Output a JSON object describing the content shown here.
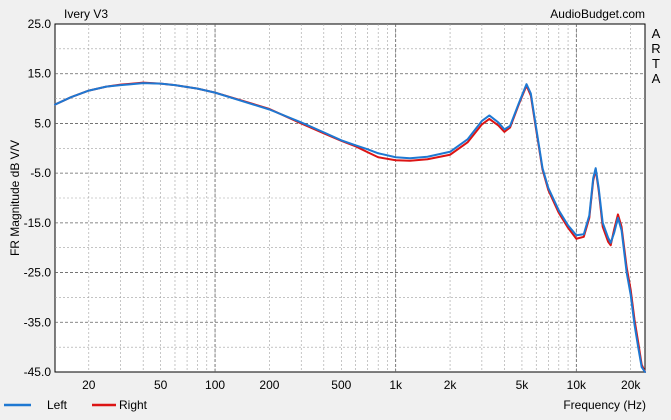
{
  "header": {
    "title": "Ivery V3",
    "site": "AudioBudget.com",
    "arta": [
      "A",
      "R",
      "T",
      "A"
    ]
  },
  "colors": {
    "background": "#f0f0f0",
    "plot_bg": "#ffffff",
    "grid": "#a0a0a0",
    "left": "#1e78d2",
    "right": "#dc1414"
  },
  "chart_data": {
    "type": "line",
    "title": "Ivery V3",
    "xlabel": "Frequency (Hz)",
    "ylabel": "FR Magnitude dB V/V",
    "xscale": "log",
    "xlim": [
      13,
      24000
    ],
    "ylim": [
      -45,
      25
    ],
    "grid": true,
    "legend_position": "bottom-left",
    "xticks": [
      {
        "v": 20,
        "label": "20"
      },
      {
        "v": 50,
        "label": "50"
      },
      {
        "v": 100,
        "label": "100"
      },
      {
        "v": 200,
        "label": "200"
      },
      {
        "v": 500,
        "label": "500"
      },
      {
        "v": 1000,
        "label": "1k"
      },
      {
        "v": 2000,
        "label": "2k"
      },
      {
        "v": 5000,
        "label": "5k"
      },
      {
        "v": 10000,
        "label": "10k"
      },
      {
        "v": 20000,
        "label": "20k"
      }
    ],
    "yticks": [
      {
        "v": 25,
        "label": "25.0"
      },
      {
        "v": 15,
        "label": "15.0"
      },
      {
        "v": 5,
        "label": "5.0"
      },
      {
        "v": -5,
        "label": "-5.0"
      },
      {
        "v": -15,
        "label": "-15.0"
      },
      {
        "v": -25,
        "label": "-25.0"
      },
      {
        "v": -35,
        "label": "-35.0"
      },
      {
        "v": -45,
        "label": "-45.0"
      }
    ],
    "series": [
      {
        "name": "Left",
        "color": "#1e78d2",
        "points": [
          [
            13,
            8.8
          ],
          [
            16,
            10.3
          ],
          [
            20,
            11.6
          ],
          [
            25,
            12.4
          ],
          [
            30,
            12.7
          ],
          [
            40,
            13.1
          ],
          [
            50,
            13.0
          ],
          [
            60,
            12.7
          ],
          [
            80,
            12.0
          ],
          [
            100,
            11.2
          ],
          [
            150,
            9.2
          ],
          [
            200,
            7.8
          ],
          [
            300,
            5.2
          ],
          [
            400,
            3.2
          ],
          [
            500,
            1.6
          ],
          [
            600,
            0.6
          ],
          [
            700,
            -0.2
          ],
          [
            800,
            -1.0
          ],
          [
            1000,
            -1.8
          ],
          [
            1200,
            -2.0
          ],
          [
            1500,
            -1.7
          ],
          [
            2000,
            -0.7
          ],
          [
            2500,
            1.8
          ],
          [
            3000,
            5.5
          ],
          [
            3300,
            6.6
          ],
          [
            3700,
            5.2
          ],
          [
            4000,
            3.8
          ],
          [
            4300,
            4.5
          ],
          [
            4800,
            9.0
          ],
          [
            5300,
            12.9
          ],
          [
            5600,
            11.0
          ],
          [
            6000,
            4.0
          ],
          [
            6500,
            -4.0
          ],
          [
            7000,
            -8.0
          ],
          [
            8000,
            -12.5
          ],
          [
            9000,
            -15.5
          ],
          [
            10000,
            -17.5
          ],
          [
            11000,
            -17.3
          ],
          [
            11800,
            -13.5
          ],
          [
            12400,
            -6.0
          ],
          [
            12800,
            -4.0
          ],
          [
            13300,
            -8.0
          ],
          [
            14000,
            -15.0
          ],
          [
            15000,
            -18.0
          ],
          [
            15500,
            -19.0
          ],
          [
            16200,
            -17.0
          ],
          [
            17000,
            -14.0
          ],
          [
            17800,
            -16.5
          ],
          [
            19000,
            -25.0
          ],
          [
            20000,
            -29.5
          ],
          [
            21000,
            -35.5
          ],
          [
            22000,
            -40.0
          ],
          [
            23000,
            -44.0
          ],
          [
            24000,
            -45.0
          ]
        ]
      },
      {
        "name": "Right",
        "color": "#dc1414",
        "points": [
          [
            13,
            8.8
          ],
          [
            16,
            10.3
          ],
          [
            20,
            11.6
          ],
          [
            25,
            12.4
          ],
          [
            30,
            12.8
          ],
          [
            40,
            13.2
          ],
          [
            50,
            13.0
          ],
          [
            60,
            12.7
          ],
          [
            80,
            12.0
          ],
          [
            100,
            11.2
          ],
          [
            150,
            9.3
          ],
          [
            200,
            7.9
          ],
          [
            300,
            5.0
          ],
          [
            400,
            3.0
          ],
          [
            500,
            1.5
          ],
          [
            600,
            0.4
          ],
          [
            700,
            -0.8
          ],
          [
            800,
            -1.8
          ],
          [
            1000,
            -2.4
          ],
          [
            1200,
            -2.5
          ],
          [
            1500,
            -2.2
          ],
          [
            2000,
            -1.3
          ],
          [
            2500,
            1.2
          ],
          [
            3000,
            4.8
          ],
          [
            3300,
            5.9
          ],
          [
            3700,
            4.6
          ],
          [
            4000,
            3.3
          ],
          [
            4300,
            4.2
          ],
          [
            4800,
            8.8
          ],
          [
            5300,
            12.6
          ],
          [
            5600,
            10.6
          ],
          [
            6000,
            3.6
          ],
          [
            6500,
            -4.3
          ],
          [
            7000,
            -8.4
          ],
          [
            8000,
            -13.0
          ],
          [
            9000,
            -16.0
          ],
          [
            10000,
            -18.2
          ],
          [
            11000,
            -17.8
          ],
          [
            11800,
            -14.0
          ],
          [
            12400,
            -6.5
          ],
          [
            12800,
            -4.3
          ],
          [
            13300,
            -8.5
          ],
          [
            14000,
            -15.8
          ],
          [
            15000,
            -18.8
          ],
          [
            15500,
            -19.5
          ],
          [
            16200,
            -16.3
          ],
          [
            17000,
            -13.3
          ],
          [
            17800,
            -15.8
          ],
          [
            19000,
            -24.0
          ],
          [
            20000,
            -28.5
          ],
          [
            21000,
            -34.5
          ],
          [
            22000,
            -39.0
          ],
          [
            23000,
            -43.5
          ],
          [
            24000,
            -45.0
          ]
        ]
      }
    ]
  }
}
